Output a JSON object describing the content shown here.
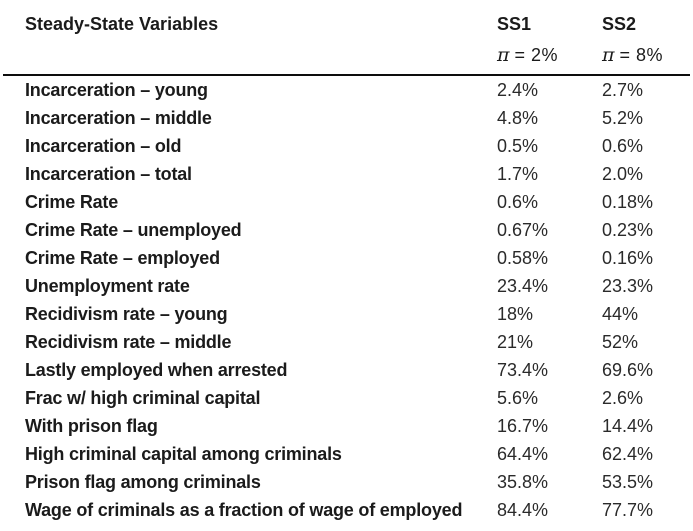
{
  "header": {
    "title": "Steady-State Variables",
    "columns": [
      {
        "label": "SS1",
        "pi_symbol": "π",
        "condition": "= 2%"
      },
      {
        "label": "SS2",
        "pi_symbol": "π",
        "condition": "= 8%"
      }
    ]
  },
  "table": {
    "rows": [
      {
        "label": "Incarceration – young",
        "ss1": "2.4%",
        "ss2": "2.7%"
      },
      {
        "label": "Incarceration – middle",
        "ss1": "4.8%",
        "ss2": "5.2%"
      },
      {
        "label": "Incarceration – old",
        "ss1": "0.5%",
        "ss2": "0.6%"
      },
      {
        "label": "Incarceration – total",
        "ss1": "1.7%",
        "ss2": "2.0%"
      },
      {
        "label": "Crime Rate",
        "ss1": "0.6%",
        "ss2": "0.18%"
      },
      {
        "label": "Crime Rate – unemployed",
        "ss1": "0.67%",
        "ss2": "0.23%"
      },
      {
        "label": "Crime Rate – employed",
        "ss1": "0.58%",
        "ss2": "0.16%"
      },
      {
        "label": "Unemployment rate",
        "ss1": "23.4%",
        "ss2": "23.3%"
      },
      {
        "label": "Recidivism rate – young",
        "ss1": "18%",
        "ss2": "44%"
      },
      {
        "label": "Recidivism rate – middle",
        "ss1": "21%",
        "ss2": "52%"
      },
      {
        "label": "Lastly employed when arrested",
        "ss1": "73.4%",
        "ss2": "69.6%"
      },
      {
        "label": "Frac w/ high criminal capital",
        "ss1": "5.6%",
        "ss2": "2.6%"
      },
      {
        "label": "With prison flag",
        "ss1": "16.7%",
        "ss2": "14.4%"
      },
      {
        "label": "High criminal capital among criminals",
        "ss1": "64.4%",
        "ss2": "62.4%"
      },
      {
        "label": "Prison flag among criminals",
        "ss1": "35.8%",
        "ss2": "53.5%"
      },
      {
        "label": "Wage of criminals as a fraction of wage of employed",
        "ss1": "84.4%",
        "ss2": "77.7%"
      }
    ]
  },
  "colors": {
    "text": "#1b1b1b",
    "rule": "#0d0d0d",
    "background": "#ffffff"
  }
}
